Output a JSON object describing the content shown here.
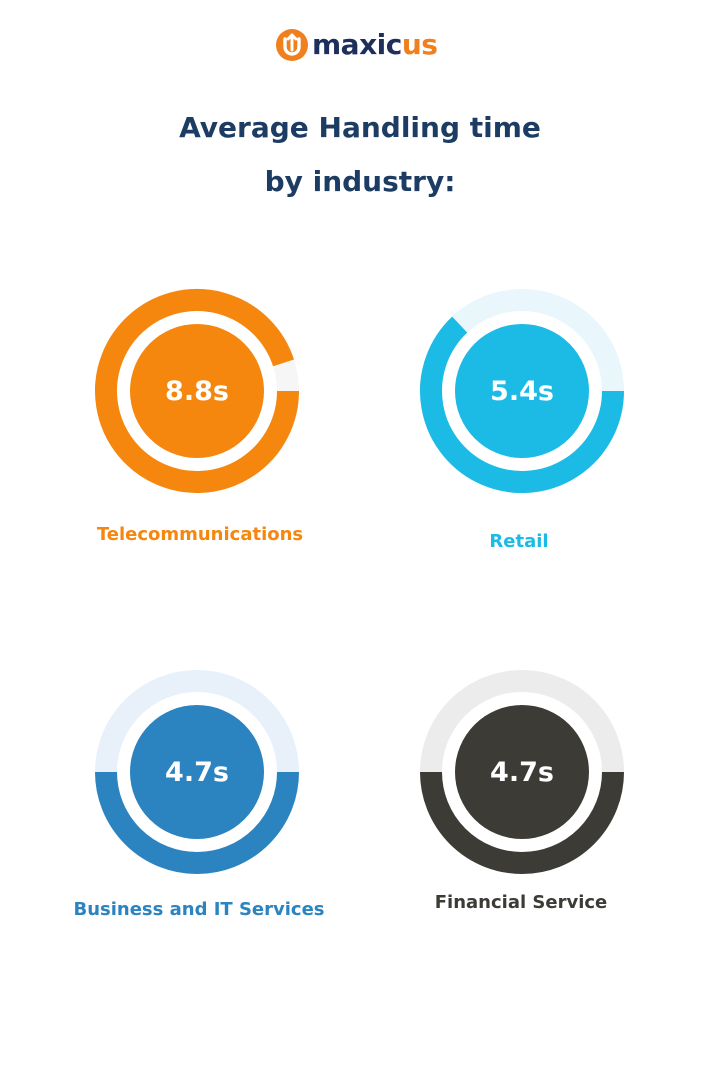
{
  "brand": {
    "name_main": "maxic",
    "name_accent": "us",
    "mark_color": "#f07f1e",
    "text_color": "#1f2f5c"
  },
  "title": {
    "line1": "Average Handling time",
    "line2": "by industry:"
  },
  "chart_data": {
    "type": "pie",
    "title": "Average Handling time by industry:",
    "unit": "s",
    "items": [
      {
        "category": "Telecommunications",
        "value": 8.8,
        "value_label": "8.8s",
        "fill_fraction": 0.95,
        "color": "#f5870e",
        "track_color": "#f6f6f6"
      },
      {
        "category": "Retail",
        "value": 5.4,
        "value_label": "5.4s",
        "fill_fraction": 0.63,
        "color": "#1bbbe5",
        "track_color": "#e9f6fb"
      },
      {
        "category": "Business and IT Services",
        "value": 4.7,
        "value_label": "4.7s",
        "fill_fraction": 0.5,
        "color": "#2b83c0",
        "track_color": "#e8f1f9"
      },
      {
        "category": "Financial Service",
        "value": 4.7,
        "value_label": "4.7s",
        "fill_fraction": 0.5,
        "color": "#3c3b35",
        "track_color": "#ececec"
      }
    ]
  }
}
